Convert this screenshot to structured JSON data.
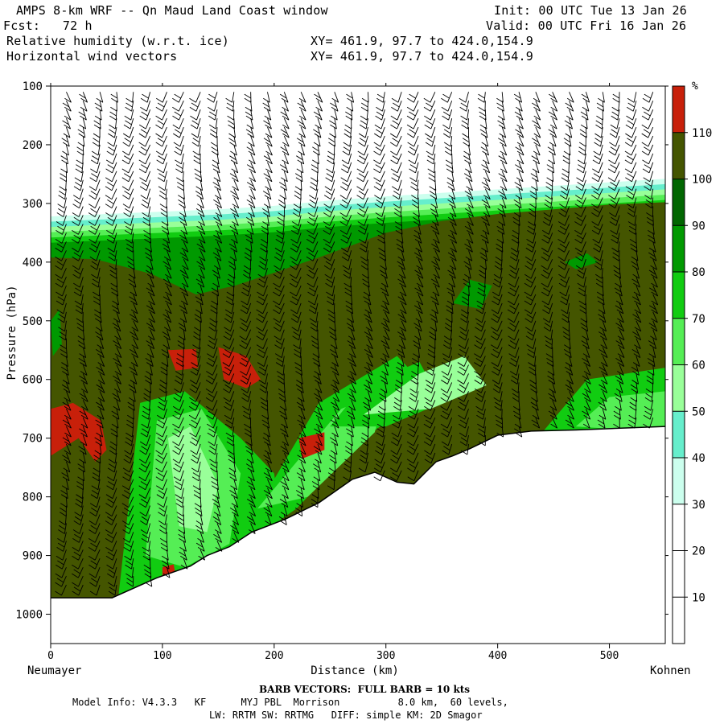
{
  "header": {
    "line1_left": "AMPS 8-km WRF -- Qn Maud Land Coast window",
    "line1_right": "Init: 00 UTC Tue 13 Jan 26",
    "line2_left": "Fcst:   72 h",
    "line2_right": "Valid: 00 UTC Fri 16 Jan 26",
    "line3_left": "Relative humidity (w.r.t. ice)",
    "line3_right": "XY= 461.9, 97.7 to 424.0,154.9",
    "line4_left": "Horizontal wind vectors",
    "line4_right": "XY= 461.9, 97.7 to 424.0,154.9"
  },
  "chart_data": {
    "type": "cross-section",
    "ylabel": "Pressure (hPa)",
    "xlabel": "Distance (km)",
    "x_start_label": "Neumayer",
    "x_end_label": "Kohnen",
    "x_range": [
      0,
      550
    ],
    "y_range": [
      100,
      1050
    ],
    "x_ticks": [
      0,
      100,
      200,
      300,
      400,
      500
    ],
    "y_ticks": [
      100,
      200,
      300,
      400,
      500,
      600,
      700,
      800,
      900,
      1000
    ],
    "colorbar_unit": "%",
    "colorbar_levels": [
      10,
      20,
      30,
      40,
      50,
      60,
      70,
      80,
      90,
      100,
      110
    ],
    "colorbar_colors": [
      "#ffffff",
      "#ffffff",
      "#ffffff",
      "#ccffee",
      "#66eecc",
      "#99ff99",
      "#55ee55",
      "#11cc11",
      "#009900",
      "#006600",
      "#445500",
      "#c8200a"
    ],
    "terrain_surface": [
      {
        "x": 0,
        "p": 972
      },
      {
        "x": 55,
        "p": 972
      },
      {
        "x": 95,
        "p": 938
      },
      {
        "x": 125,
        "p": 918
      },
      {
        "x": 140,
        "p": 900
      },
      {
        "x": 160,
        "p": 885
      },
      {
        "x": 180,
        "p": 860
      },
      {
        "x": 210,
        "p": 838
      },
      {
        "x": 240,
        "p": 810
      },
      {
        "x": 270,
        "p": 770
      },
      {
        "x": 290,
        "p": 758
      },
      {
        "x": 310,
        "p": 775
      },
      {
        "x": 325,
        "p": 778
      },
      {
        "x": 345,
        "p": 740
      },
      {
        "x": 360,
        "p": 730
      },
      {
        "x": 375,
        "p": 718
      },
      {
        "x": 400,
        "p": 695
      },
      {
        "x": 430,
        "p": 688
      },
      {
        "x": 470,
        "p": 686
      },
      {
        "x": 510,
        "p": 683
      },
      {
        "x": 550,
        "p": 680
      }
    ],
    "moist_top": [
      {
        "x": 0,
        "p": 330
      },
      {
        "x": 50,
        "p": 326
      },
      {
        "x": 100,
        "p": 322
      },
      {
        "x": 150,
        "p": 318
      },
      {
        "x": 200,
        "p": 312
      },
      {
        "x": 250,
        "p": 303
      },
      {
        "x": 300,
        "p": 296
      },
      {
        "x": 350,
        "p": 290
      },
      {
        "x": 400,
        "p": 284
      },
      {
        "x": 450,
        "p": 278
      },
      {
        "x": 500,
        "p": 272
      },
      {
        "x": 550,
        "p": 266
      }
    ],
    "barb_label": "BARB VECTORS:  FULL BARB = 10 kts"
  },
  "footer": {
    "model_info": "Model Info: V4.3.3   KF      MYJ PBL  Morrison          8.0 km,  60 levels,",
    "physics": "LW: RRTM SW: RRTMG   DIFF: simple KM: 2D Smagor"
  }
}
